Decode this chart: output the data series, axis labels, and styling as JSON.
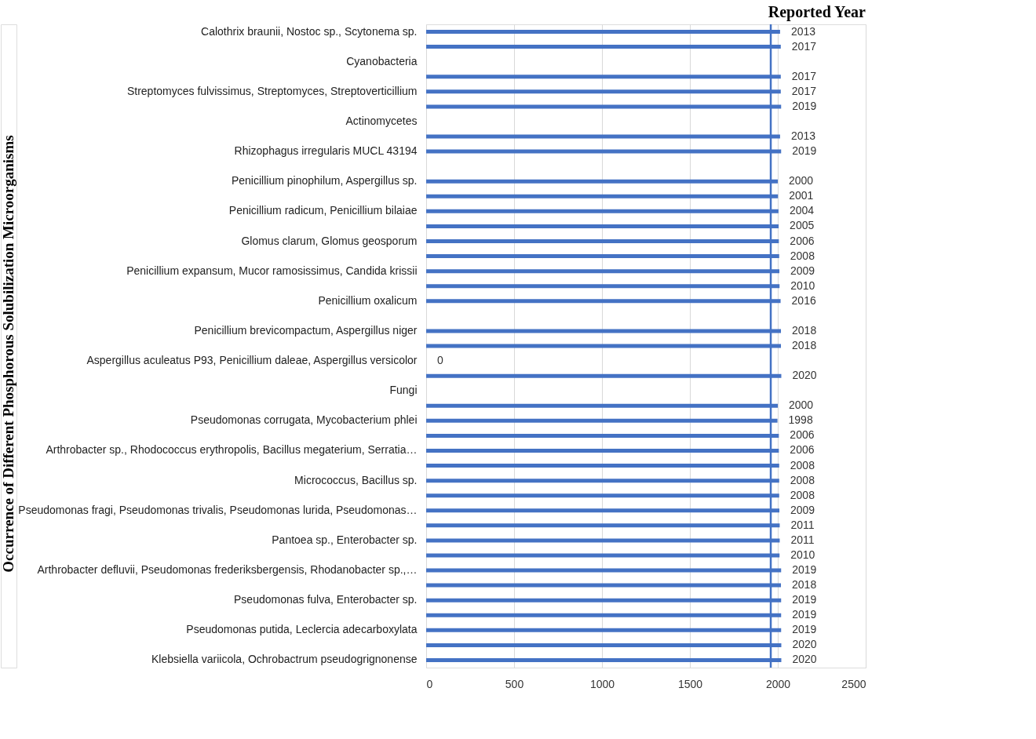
{
  "chart_data": {
    "type": "bar",
    "orientation": "horizontal",
    "title": "Reported Year",
    "ylabel": "Occurrence of Different Phosphorous Solubilization Microorganisms",
    "categories": [
      "Calothrix braunii, Nostoc sp., Scytonema sp.",
      null,
      "Cyanobacteria",
      null,
      "Streptomyces fulvissimus, Streptomyces, Streptoverticillium",
      null,
      "Actinomycetes",
      null,
      "Rhizophagus irregularis MUCL 43194",
      null,
      "Penicillium pinophilum, Aspergillus sp.",
      null,
      "Penicillium radicum, Penicillium bilaiae",
      null,
      "Glomus clarum, Glomus geosporum",
      null,
      "Penicillium expansum, Mucor ramosissimus, Candida krissii",
      null,
      "Penicillium oxalicum",
      null,
      "Penicillium brevicompactum, Aspergillus niger",
      null,
      "Aspergillus aculeatus P93, Penicillium daleae, Aspergillus versicolor",
      null,
      "Fungi",
      null,
      "Pseudomonas corrugata, Mycobacterium phlei",
      null,
      "Arthrobacter sp., Rhodococcus erythropolis, Bacillus megaterium, Serratia…",
      null,
      "Micrococcus, Bacillus sp.",
      null,
      "Pseudomonas fragi, Pseudomonas trivalis, Pseudomonas lurida, Pseudomonas…",
      null,
      "Pantoea sp., Enterobacter sp.",
      null,
      "Arthrobacter defluvii, Pseudomonas frederiksbergensis, Rhodanobacter sp.,…",
      null,
      "Pseudomonas fulva, Enterobacter sp.",
      null,
      "Pseudomonas putida, Leclercia adecarboxylata",
      null,
      "Klebsiella variicola, Ochrobactrum pseudogrignonense"
    ],
    "values": [
      2013,
      2017,
      null,
      2017,
      2017,
      2019,
      null,
      2013,
      2019,
      null,
      2000,
      2001,
      2004,
      2005,
      2006,
      2008,
      2009,
      2010,
      2016,
      null,
      2018,
      2018,
      0,
      2020,
      null,
      2000,
      1998,
      2006,
      2006,
      2008,
      2008,
      2008,
      2009,
      2011,
      2011,
      2010,
      2019,
      2018,
      2019,
      2019,
      2019,
      2020,
      2020
    ],
    "color": "#4472c4",
    "data_labels": true,
    "grid": "x",
    "xlim": [
      0,
      2500
    ],
    "xticks": [
      0,
      500,
      1000,
      1500,
      2000,
      2500
    ],
    "ref_lines": [
      {
        "axis": "x",
        "value": 1960,
        "color": "#4472c4"
      }
    ]
  }
}
